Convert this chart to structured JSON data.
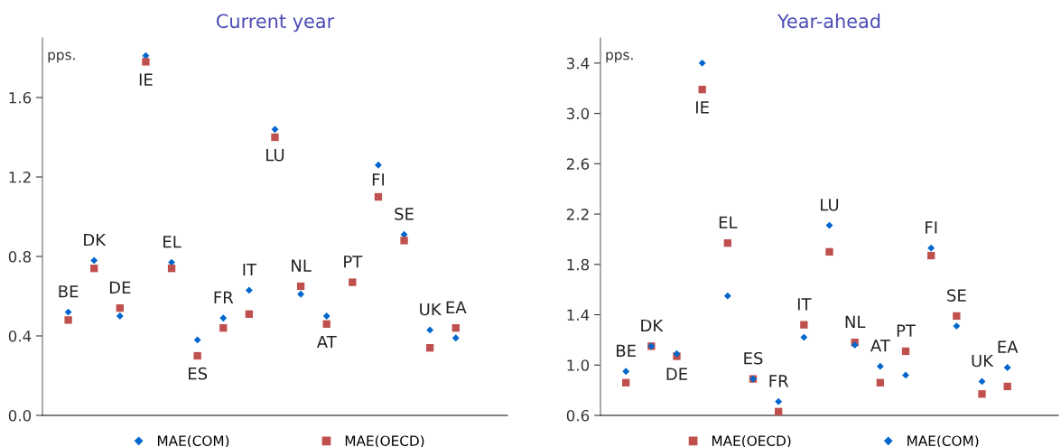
{
  "chart_data": [
    {
      "type": "scatter",
      "title": "Current year",
      "ylabel": "pps.",
      "categories": [
        "BE",
        "DK",
        "DE",
        "IE",
        "EL",
        "ES",
        "FR",
        "IT",
        "LU",
        "NL",
        "AT",
        "PT",
        "FI",
        "SE",
        "UK",
        "EA"
      ],
      "ylim": [
        0,
        1.9
      ],
      "yticks": [
        {
          "value": 0,
          "label": "0.0"
        },
        0.4,
        0.8,
        1.2,
        1.6
      ],
      "tick_labels": "y",
      "legend": "bottom",
      "grid": false,
      "series": [
        {
          "name": "MAE(COM)",
          "color": "#0066cc",
          "marker": "diamond",
          "values": [
            0.52,
            0.78,
            0.5,
            1.81,
            0.77,
            0.38,
            0.49,
            0.63,
            1.44,
            0.61,
            0.5,
            null,
            1.26,
            0.91,
            0.43,
            0.39
          ]
        },
        {
          "name": "MAE(OECD)",
          "color": "#c0504d",
          "marker": "square",
          "values": [
            0.48,
            0.74,
            0.54,
            1.78,
            0.74,
            0.3,
            0.44,
            0.51,
            1.4,
            0.65,
            0.46,
            0.67,
            1.1,
            0.88,
            0.34,
            0.44
          ]
        }
      ]
    },
    {
      "type": "scatter",
      "title": "Year-ahead",
      "ylabel": "pps.",
      "categories": [
        "BE",
        "DK",
        "DE",
        "IE",
        "EL",
        "ES",
        "FR",
        "IT",
        "LU",
        "NL",
        "AT",
        "PT",
        "FI",
        "SE",
        "UK",
        "EA"
      ],
      "ylim": [
        0.6,
        3.6
      ],
      "yticks": [
        0.6,
        {
          "value": 1.0,
          "label": "1.0"
        },
        1.4,
        1.8,
        2.2,
        2.6,
        {
          "value": 3.0,
          "label": "3.0"
        },
        3.4
      ],
      "tick_labels": "y",
      "legend": "bottom",
      "grid": false,
      "series": [
        {
          "name": "MAE(OECD)",
          "color": "#c0504d",
          "marker": "square",
          "values": [
            0.86,
            1.15,
            1.07,
            3.19,
            1.97,
            0.89,
            0.63,
            1.32,
            1.9,
            1.18,
            0.86,
            1.11,
            1.87,
            1.39,
            0.77,
            0.83
          ]
        },
        {
          "name": "MAE(COM)",
          "color": "#0066cc",
          "marker": "diamond",
          "values": [
            0.95,
            1.15,
            1.09,
            3.4,
            1.55,
            0.89,
            0.71,
            1.22,
            2.11,
            1.16,
            0.99,
            0.92,
            1.93,
            1.31,
            0.87,
            0.98
          ]
        }
      ]
    }
  ]
}
